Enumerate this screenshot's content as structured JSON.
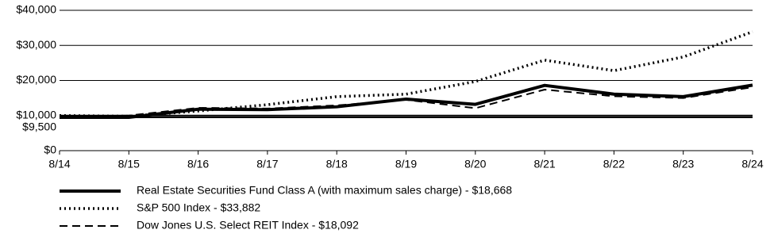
{
  "chart_data": {
    "type": "line",
    "categories": [
      "8/14",
      "8/15",
      "8/16",
      "8/17",
      "8/18",
      "8/19",
      "8/20",
      "8/21",
      "8/22",
      "8/23",
      "8/24"
    ],
    "series": [
      {
        "name": "Real Estate Securities Fund Class A (with maximum sales charge)  - $18,668",
        "color": "#000000",
        "style": "solid",
        "values": [
          9500,
          9500,
          11800,
          11700,
          12500,
          14700,
          13200,
          18600,
          16100,
          15400,
          18668
        ]
      },
      {
        "name": "S&P 500 Index - $33,882",
        "color": "#000000",
        "style": "dotted",
        "values": [
          10000,
          9800,
          11300,
          13100,
          15400,
          16100,
          19700,
          25800,
          22800,
          26700,
          33882
        ]
      },
      {
        "name": "Dow Jones U.S. Select REIT Index - $18,092",
        "color": "#000000",
        "style": "dashed",
        "values": [
          9600,
          10000,
          12200,
          12000,
          12900,
          14500,
          12100,
          17400,
          15500,
          15000,
          18092
        ]
      }
    ],
    "ylim": [
      0,
      40000
    ],
    "yticks": [
      {
        "value": 0,
        "label": "$0"
      },
      {
        "value": 9500,
        "label": "$9,500"
      },
      {
        "value": 10000,
        "label": "$10,000"
      },
      {
        "value": 20000,
        "label": "$20,000"
      },
      {
        "value": 30000,
        "label": "$30,000"
      },
      {
        "value": 40000,
        "label": "$40,000"
      }
    ],
    "grid": true
  }
}
